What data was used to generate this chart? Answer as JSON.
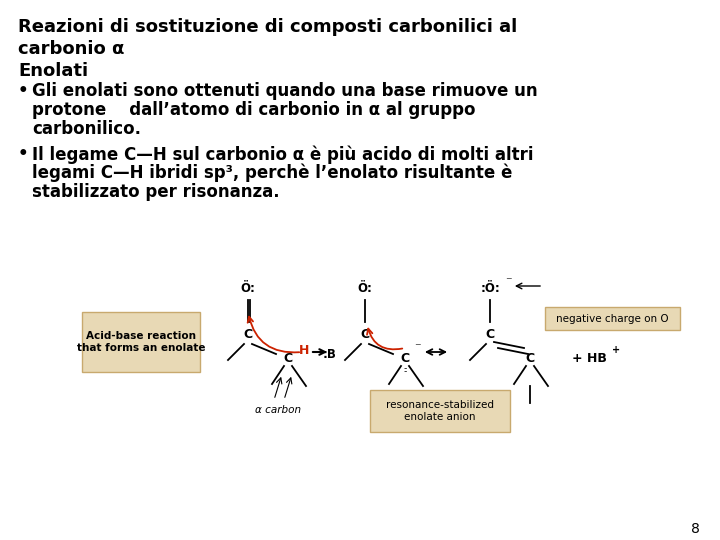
{
  "bg_color": "#ffffff",
  "title_line1": "Reazioni di sostituzione di composti carbonilici al",
  "title_line2": "carbonio α",
  "section_header": "Enolati",
  "bullet1_line1": "Gli enolati sono ottenuti quando una base rimuove un",
  "bullet1_line2": "protone    dall’atomo di carbonio in α al gruppo",
  "bullet1_line3": "carbonilico.",
  "bullet2_line1": "Il legame C—H sul carbonio α è più acido di molti altri",
  "bullet2_line2": "legami C—H ibridi sp³, perchè l’enolato risultante è",
  "bullet2_line3": "stabilizzato per risonanza.",
  "page_number": "8",
  "text_color": "#000000",
  "title_fontsize": 13.0,
  "body_fontsize": 12.0,
  "header_fontsize": 13.0,
  "box1_text": "Acid-base reaction\nthat forms an enolate",
  "box2_text": "resonance-stabilized\nenolate anion",
  "box3_text": "negative charge on O",
  "box_bg": "#e8d9b5",
  "box_border": "#c8a96e",
  "alpha_carbon_label": "α carbon",
  "hbplus_label": "+ HB⁺"
}
